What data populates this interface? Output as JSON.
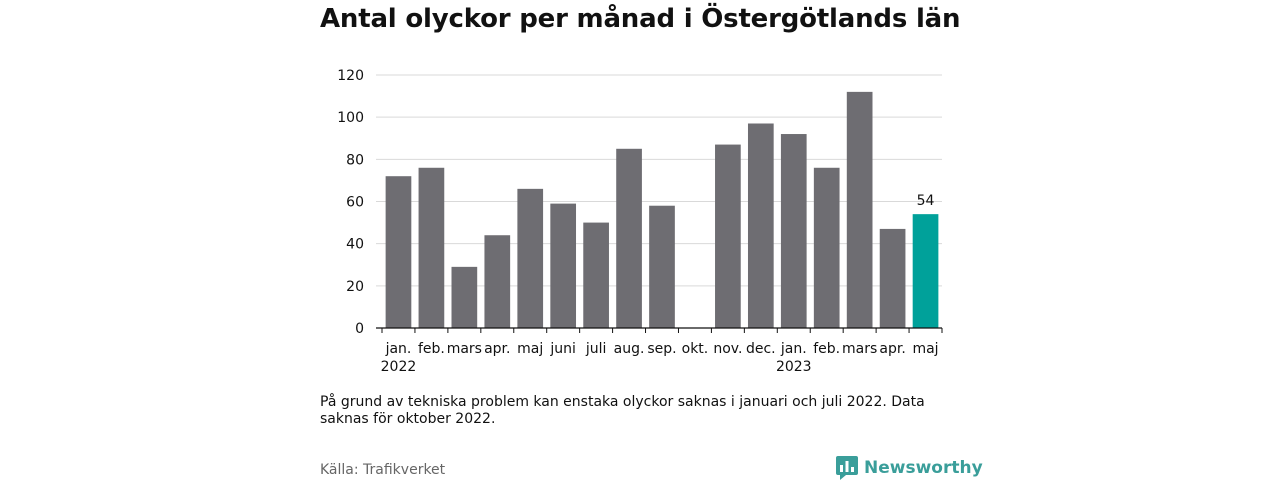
{
  "title": "Antal olyckor per månad i Östergötlands län",
  "note": "På grund av tekniska problem kan enstaka olyckor saknas i januari och juli 2022. Data saknas för oktober 2022.",
  "source": "Källa: Trafikverket",
  "brand": {
    "name": "Newsworthy",
    "icon": "newsworthy-chart-icon",
    "color": "#3a9e9a"
  },
  "colors": {
    "bar": "#6e6d72",
    "highlight": "#00a19a",
    "grid": "#d9d9d9",
    "axis": "#111111"
  },
  "chart_data": {
    "type": "bar",
    "title": "Antal olyckor per månad i Östergötlands län",
    "xlabel": "",
    "ylabel": "",
    "ylim": [
      0,
      120
    ],
    "yticks": [
      0,
      20,
      40,
      60,
      80,
      100,
      120
    ],
    "grid": true,
    "categories": [
      "jan.",
      "feb.",
      "mars",
      "apr.",
      "maj",
      "juni",
      "juli",
      "aug.",
      "sep.",
      "okt.",
      "nov.",
      "dec.",
      "jan.",
      "feb.",
      "mars",
      "apr.",
      "maj"
    ],
    "year_labels": [
      {
        "index": 0,
        "label": "2022"
      },
      {
        "index": 12,
        "label": "2023"
      }
    ],
    "values": [
      72,
      76,
      29,
      44,
      66,
      59,
      50,
      85,
      58,
      null,
      87,
      97,
      92,
      76,
      112,
      47,
      54
    ],
    "highlight_index": 16,
    "highlight_label": "54"
  }
}
